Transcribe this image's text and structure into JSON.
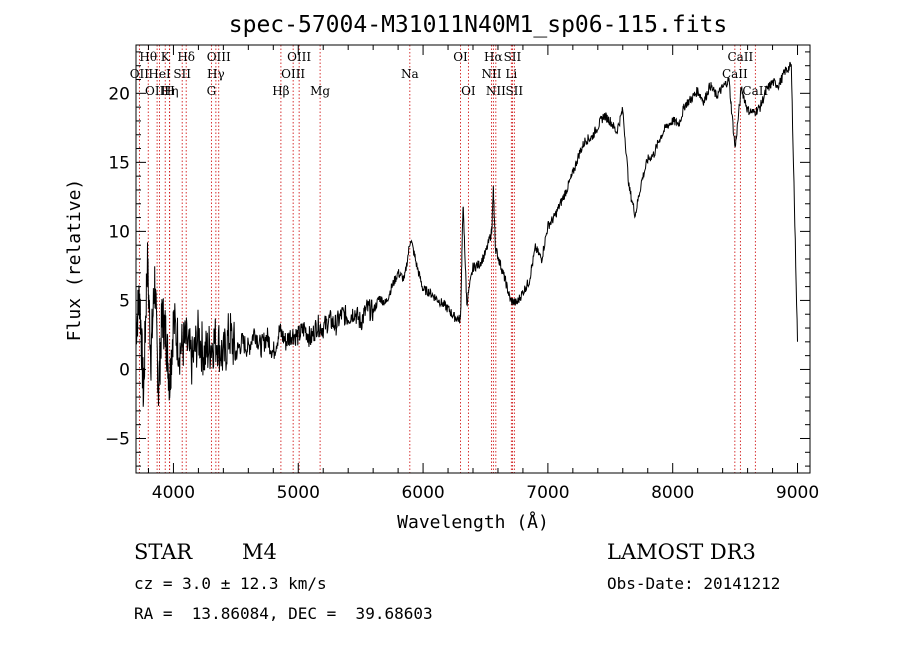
{
  "chart_data": {
    "type": "line",
    "title": "spec-57004-M31011N40M1_sp06-115.fits",
    "xlabel": "Wavelength (Å)",
    "ylabel": "Flux (relative)",
    "xlim": [
      3700,
      9100
    ],
    "ylim": [
      -7.5,
      23.5
    ],
    "x_ticks": [
      4000,
      5000,
      6000,
      7000,
      8000,
      9000
    ],
    "y_ticks": [
      -5,
      0,
      5,
      10,
      15,
      20
    ],
    "x_tick_labels": [
      "4000",
      "5000",
      "6000",
      "7000",
      "8000",
      "9000"
    ],
    "y_tick_labels": [
      "−5",
      "0",
      "5",
      "10",
      "15",
      "20"
    ],
    "spectral_lines": [
      {
        "label": "OII",
        "wavelength": 3727,
        "row": 1
      },
      {
        "label": "Hθ",
        "wavelength": 3798,
        "row": 0
      },
      {
        "label": "OIII",
        "wavelength": 3869,
        "row": 2
      },
      {
        "label": "HeI",
        "wavelength": 3889,
        "row": 1
      },
      {
        "label": "K",
        "wavelength": 3934,
        "row": 0
      },
      {
        "label": "Hη",
        "wavelength": 3970,
        "row": 2
      },
      {
        "label": "H",
        "wavelength": 3969,
        "row": 2
      },
      {
        "label": "SII",
        "wavelength": 4070,
        "row": 1
      },
      {
        "label": "Hδ",
        "wavelength": 4102,
        "row": 0
      },
      {
        "label": "G",
        "wavelength": 4304,
        "row": 2
      },
      {
        "label": "Hγ",
        "wavelength": 4340,
        "row": 1
      },
      {
        "label": "OIII",
        "wavelength": 4363,
        "row": 0
      },
      {
        "label": "Hβ",
        "wavelength": 4861,
        "row": 2
      },
      {
        "label": "OIII",
        "wavelength": 4959,
        "row": 1
      },
      {
        "label": "OIII",
        "wavelength": 5007,
        "row": 0
      },
      {
        "label": "Mg",
        "wavelength": 5175,
        "row": 2
      },
      {
        "label": "Na",
        "wavelength": 5894,
        "row": 1
      },
      {
        "label": "OI",
        "wavelength": 6300,
        "row": 0
      },
      {
        "label": "OI",
        "wavelength": 6363,
        "row": 2
      },
      {
        "label": "NII",
        "wavelength": 6548,
        "row": 1
      },
      {
        "label": "Hα",
        "wavelength": 6563,
        "row": 0
      },
      {
        "label": "NII",
        "wavelength": 6583,
        "row": 2
      },
      {
        "label": "Li",
        "wavelength": 6707,
        "row": 1
      },
      {
        "label": "SII",
        "wavelength": 6716,
        "row": 0
      },
      {
        "label": "SII",
        "wavelength": 6731,
        "row": 2
      },
      {
        "label": "CaII",
        "wavelength": 8498,
        "row": 1
      },
      {
        "label": "CaII",
        "wavelength": 8542,
        "row": 0
      },
      {
        "label": "CaII",
        "wavelength": 8662,
        "row": 2
      }
    ],
    "series": [
      {
        "name": "flux",
        "x": [
          3700,
          3730,
          3760,
          3790,
          3820,
          3850,
          3880,
          3910,
          3940,
          3970,
          4000,
          4050,
          4100,
          4150,
          4200,
          4250,
          4300,
          4350,
          4400,
          4450,
          4500,
          4550,
          4600,
          4650,
          4700,
          4750,
          4800,
          4850,
          4900,
          4950,
          5000,
          5050,
          5100,
          5150,
          5200,
          5250,
          5300,
          5350,
          5400,
          5450,
          5500,
          5550,
          5600,
          5650,
          5700,
          5750,
          5800,
          5850,
          5900,
          5950,
          6000,
          6050,
          6100,
          6150,
          6200,
          6250,
          6300,
          6320,
          6350,
          6400,
          6450,
          6500,
          6550,
          6563,
          6580,
          6620,
          6660,
          6700,
          6750,
          6800,
          6850,
          6900,
          6950,
          7000,
          7050,
          7100,
          7150,
          7200,
          7250,
          7300,
          7350,
          7400,
          7450,
          7500,
          7550,
          7600,
          7650,
          7700,
          7750,
          7800,
          7850,
          7900,
          7950,
          8000,
          8050,
          8100,
          8150,
          8200,
          8250,
          8300,
          8350,
          8400,
          8450,
          8500,
          8550,
          8600,
          8650,
          8700,
          8750,
          8800,
          8850,
          8900,
          8950,
          9000
        ],
        "values": [
          3.0,
          5.5,
          -2.0,
          8.0,
          1.0,
          6.5,
          -1.5,
          4.0,
          2.5,
          -1.0,
          3.5,
          1.5,
          2.0,
          0.5,
          2.5,
          1.0,
          1.8,
          2.2,
          0.8,
          2.6,
          1.2,
          2.0,
          1.5,
          2.8,
          1.6,
          2.4,
          1.2,
          2.8,
          2.0,
          2.6,
          2.4,
          3.0,
          2.2,
          3.2,
          3.0,
          3.6,
          3.2,
          4.0,
          3.8,
          4.2,
          3.4,
          4.4,
          4.2,
          5.2,
          4.8,
          6.0,
          7.0,
          6.5,
          9.5,
          7.5,
          5.8,
          5.6,
          5.2,
          4.8,
          4.4,
          3.8,
          3.6,
          12.0,
          4.8,
          7.4,
          7.6,
          8.4,
          10.0,
          13.0,
          8.8,
          7.6,
          6.4,
          5.0,
          4.8,
          5.6,
          6.4,
          8.8,
          8.0,
          10.4,
          11.0,
          12.0,
          13.0,
          14.2,
          15.6,
          16.6,
          16.8,
          17.6,
          18.4,
          18.0,
          17.2,
          18.8,
          13.2,
          11.2,
          13.6,
          15.2,
          15.6,
          16.8,
          17.6,
          18.0,
          17.8,
          19.2,
          19.6,
          20.2,
          19.4,
          20.6,
          19.8,
          20.4,
          21.0,
          16.0,
          20.4,
          18.8,
          18.6,
          19.0,
          20.2,
          20.8,
          20.6,
          21.6,
          22.0,
          2.0
        ]
      }
    ]
  },
  "info": {
    "star_label": "STAR",
    "subclass": "M4",
    "survey": "LAMOST DR3",
    "cz": "cz = 3.0 ± 12.3 km/s",
    "obs_date": "Obs-Date: 20141212",
    "coords": "RA =  13.86084, DEC =  39.68603"
  },
  "colors": {
    "axis": "#000000",
    "spectrum": "#000000",
    "line_marker": "#cc0000"
  }
}
